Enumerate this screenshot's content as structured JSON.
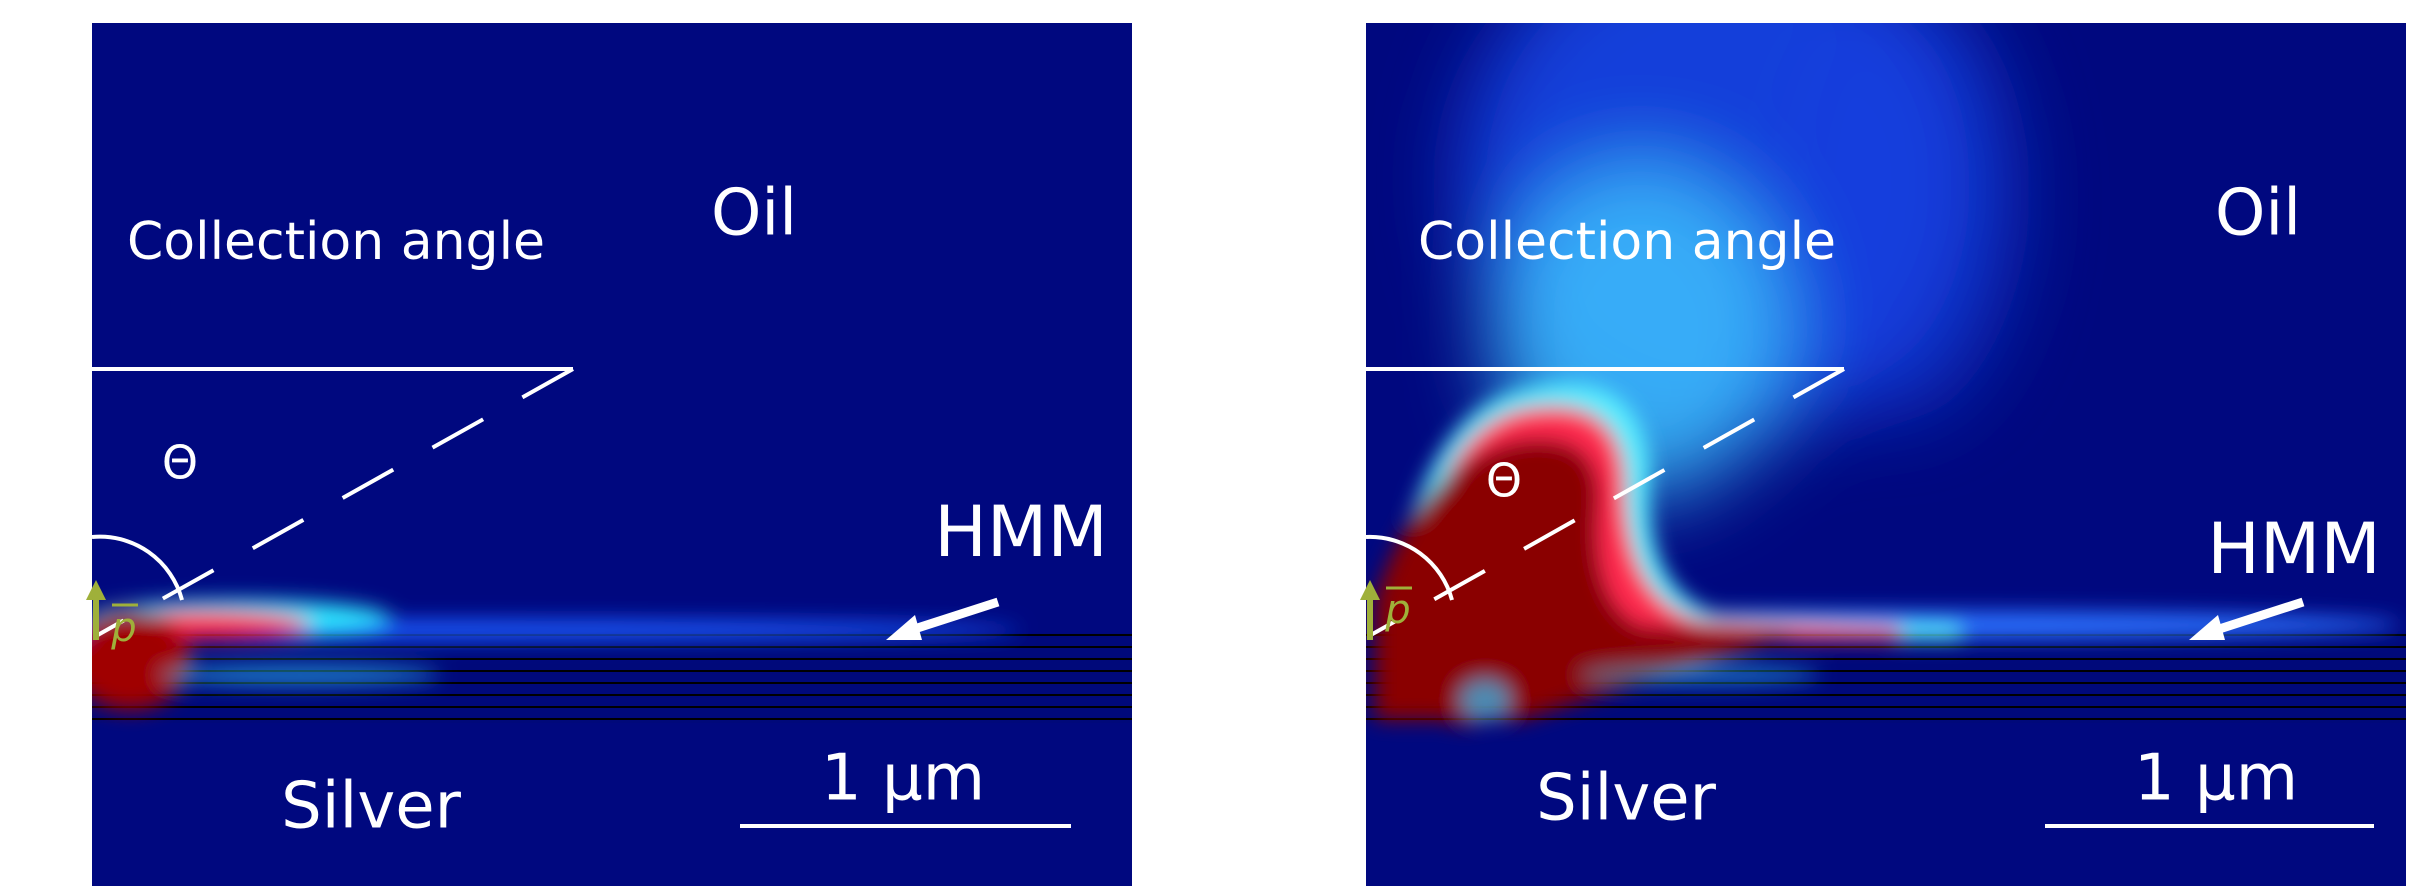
{
  "panels": [
    {
      "collection_angle": "Collection angle",
      "medium_top": "Oil",
      "angle_symbol": "Θ",
      "layer_label": "HMM",
      "medium_bottom": "Silver",
      "scale_bar": "1 μm",
      "dipole": "p"
    },
    {
      "collection_angle": "Collection angle",
      "medium_top": "Oil",
      "angle_symbol": "Θ",
      "layer_label": "HMM",
      "medium_bottom": "Silver",
      "scale_bar": "1 μm",
      "dipole": "p"
    }
  ]
}
